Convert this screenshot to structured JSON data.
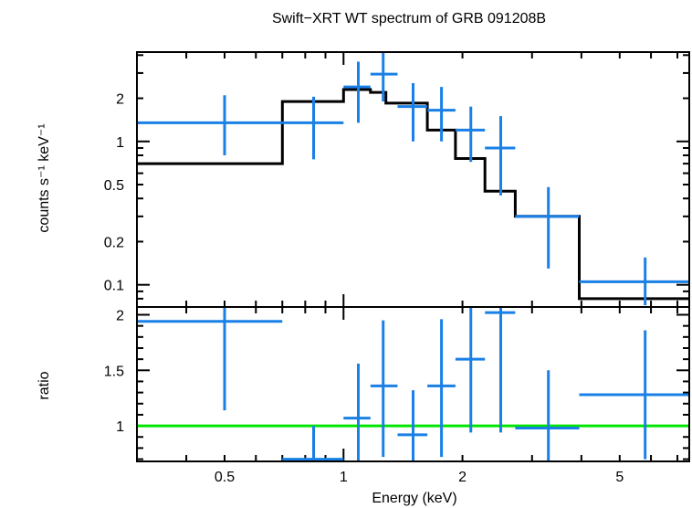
{
  "chart_data": [
    {
      "type": "scatter",
      "panel": "spectrum",
      "title": "Swift−XRT WT spectrum of GRB 091208B",
      "ylabel": "counts s⁻¹ keV⁻¹",
      "xscale": "log",
      "yscale": "log",
      "xlim": [
        0.3,
        7.5
      ],
      "ylim": [
        0.07,
        4.2
      ],
      "yticks": [
        {
          "value": 0.1,
          "label": "0.1"
        },
        {
          "value": 0.2,
          "label": "0.2"
        },
        {
          "value": 0.5,
          "label": "0.5"
        },
        {
          "value": 1,
          "label": "1"
        },
        {
          "value": 2,
          "label": "2"
        }
      ],
      "data_color": "#1a80e6",
      "model_color": "#000000",
      "series": [
        {
          "kind": "errorbar",
          "points": [
            {
              "xlo": 0.3,
              "xhi": 0.7,
              "x": 0.5,
              "y": 1.35,
              "ylo": 0.8,
              "yhi": 2.1
            },
            {
              "xlo": 0.7,
              "xhi": 1.0,
              "x": 0.84,
              "y": 1.35,
              "ylo": 0.75,
              "yhi": 2.05
            },
            {
              "xlo": 1.0,
              "xhi": 1.17,
              "x": 1.09,
              "y": 2.4,
              "ylo": 1.35,
              "yhi": 3.6
            },
            {
              "xlo": 1.17,
              "xhi": 1.37,
              "x": 1.26,
              "y": 2.95,
              "ylo": 1.9,
              "yhi": 4.2
            },
            {
              "xlo": 1.37,
              "xhi": 1.63,
              "x": 1.5,
              "y": 1.75,
              "ylo": 1.0,
              "yhi": 2.55
            },
            {
              "xlo": 1.63,
              "xhi": 1.92,
              "x": 1.77,
              "y": 1.65,
              "ylo": 1.0,
              "yhi": 2.4
            },
            {
              "xlo": 1.92,
              "xhi": 2.28,
              "x": 2.1,
              "y": 1.2,
              "ylo": 0.72,
              "yhi": 1.75
            },
            {
              "xlo": 2.28,
              "xhi": 2.72,
              "x": 2.5,
              "y": 0.9,
              "ylo": 0.42,
              "yhi": 1.5
            },
            {
              "xlo": 2.72,
              "xhi": 3.95,
              "x": 3.3,
              "y": 0.3,
              "ylo": 0.13,
              "yhi": 0.48
            },
            {
              "xlo": 3.95,
              "xhi": 7.5,
              "x": 5.8,
              "y": 0.105,
              "ylo": 0.072,
              "yhi": 0.155
            }
          ]
        },
        {
          "kind": "model-step",
          "steps": [
            {
              "xlo": 0.3,
              "xhi": 0.7,
              "y": 0.7
            },
            {
              "xlo": 0.7,
              "xhi": 1.0,
              "y": 1.9
            },
            {
              "xlo": 1.0,
              "xhi": 1.17,
              "y": 2.3
            },
            {
              "xlo": 1.17,
              "xhi": 1.28,
              "y": 2.2
            },
            {
              "xlo": 1.28,
              "xhi": 1.63,
              "y": 1.85
            },
            {
              "xlo": 1.63,
              "xhi": 1.92,
              "y": 1.2
            },
            {
              "xlo": 1.92,
              "xhi": 2.28,
              "y": 0.76
            },
            {
              "xlo": 2.28,
              "xhi": 2.72,
              "y": 0.45
            },
            {
              "xlo": 2.72,
              "xhi": 3.95,
              "y": 0.3
            },
            {
              "xlo": 3.95,
              "xhi": 7.5,
              "y": 0.08
            }
          ]
        }
      ]
    },
    {
      "type": "scatter",
      "panel": "ratio",
      "xlabel": "Energy (keV)",
      "ylabel": "ratio",
      "xscale": "log",
      "xlim": [
        0.3,
        7.5
      ],
      "ylim": [
        0.68,
        2.07
      ],
      "xticks": [
        {
          "value": 0.5,
          "label": "0.5"
        },
        {
          "value": 1,
          "label": "1"
        },
        {
          "value": 2,
          "label": "2"
        },
        {
          "value": 5,
          "label": "5"
        }
      ],
      "yticks": [
        {
          "value": 1,
          "label": "1"
        },
        {
          "value": 1.5,
          "label": "1.5"
        },
        {
          "value": 2,
          "label": "2"
        }
      ],
      "reference_line": {
        "y": 1,
        "color": "#00e600"
      },
      "data_color": "#1a80e6",
      "points": [
        {
          "xlo": 0.3,
          "xhi": 0.7,
          "x": 0.5,
          "y": 1.94,
          "ylo": 1.14,
          "yhi": 2.07
        },
        {
          "xlo": 0.7,
          "xhi": 1.0,
          "x": 0.84,
          "y": 0.7,
          "ylo": 0.68,
          "yhi": 1.0
        },
        {
          "xlo": 1.0,
          "xhi": 1.17,
          "x": 1.09,
          "y": 1.07,
          "ylo": 0.68,
          "yhi": 1.56
        },
        {
          "xlo": 1.17,
          "xhi": 1.37,
          "x": 1.26,
          "y": 1.36,
          "ylo": 0.72,
          "yhi": 1.95
        },
        {
          "xlo": 1.37,
          "xhi": 1.63,
          "x": 1.5,
          "y": 0.92,
          "ylo": 0.68,
          "yhi": 1.32
        },
        {
          "xlo": 1.63,
          "xhi": 1.92,
          "x": 1.77,
          "y": 1.36,
          "ylo": 0.72,
          "yhi": 1.96
        },
        {
          "xlo": 1.92,
          "xhi": 2.28,
          "x": 2.1,
          "y": 1.6,
          "ylo": 0.94,
          "yhi": 2.07
        },
        {
          "xlo": 2.28,
          "xhi": 2.72,
          "x": 2.5,
          "y": 2.02,
          "ylo": 0.94,
          "yhi": 2.07
        },
        {
          "xlo": 2.72,
          "xhi": 3.95,
          "x": 3.3,
          "y": 0.98,
          "ylo": 0.68,
          "yhi": 1.5
        },
        {
          "xlo": 3.95,
          "xhi": 7.5,
          "x": 5.8,
          "y": 1.28,
          "ylo": 0.7,
          "yhi": 1.86
        }
      ]
    }
  ]
}
